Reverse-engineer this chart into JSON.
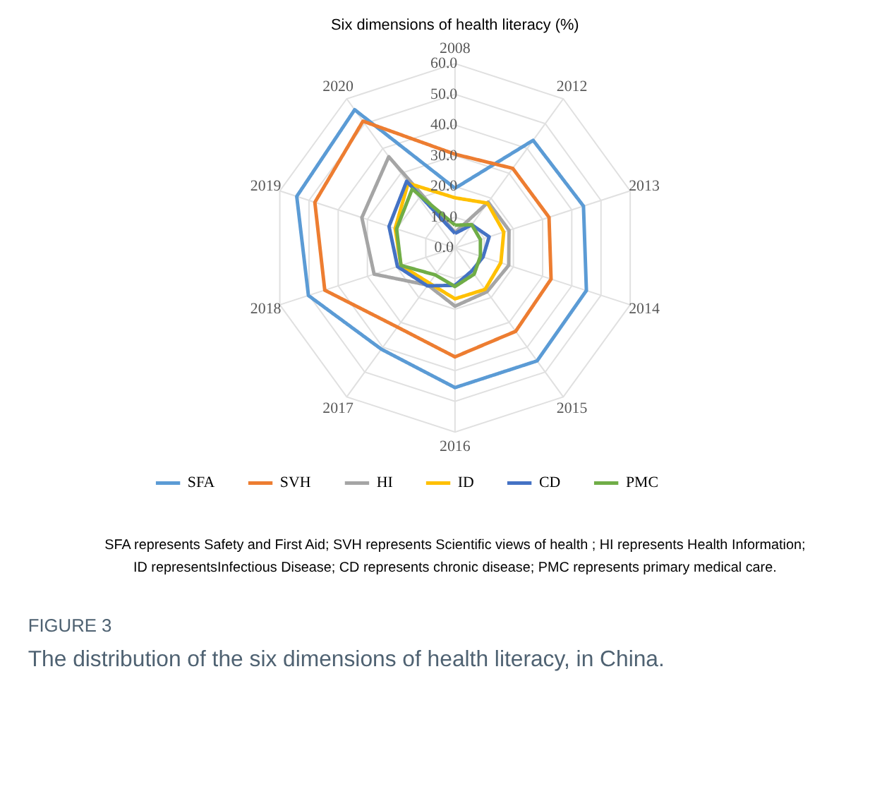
{
  "chart_data": {
    "type": "radar",
    "title": "Six dimensions of health literacy (%)",
    "categories": [
      "2008",
      "2012",
      "2013",
      "2014",
      "2015",
      "2016",
      "2017",
      "2018",
      "2019",
      "2020"
    ],
    "series": [
      {
        "name": "SFA",
        "color": "#5b9bd5",
        "values": [
          19.4,
          43.3,
          44.0,
          45.0,
          45.5,
          45.5,
          40.8,
          50.2,
          54.2,
          55.6
        ]
      },
      {
        "name": "SVH",
        "color": "#ed7d31",
        "values": [
          30.5,
          32.0,
          32.2,
          32.9,
          33.6,
          35.5,
          31.9,
          44.6,
          48.0,
          51.0
        ]
      },
      {
        "name": "HI",
        "color": "#a5a5a5",
        "values": [
          5.0,
          18.4,
          18.5,
          18.4,
          17.7,
          19.0,
          15.0,
          27.7,
          31.9,
          36.7
        ]
      },
      {
        "name": "ID",
        "color": "#ffc000",
        "values": [
          16.3,
          18.0,
          16.7,
          15.7,
          16.7,
          16.6,
          14.2,
          18.5,
          20.5,
          26.0
        ]
      },
      {
        "name": "CD",
        "color": "#4472c4",
        "values": [
          4.7,
          9.3,
          11.7,
          9.6,
          9.3,
          12.2,
          15.3,
          19.7,
          22.6,
          26.8
        ]
      },
      {
        "name": "PMC",
        "color": "#70ad47",
        "values": [
          7.4,
          9.3,
          8.7,
          8.7,
          10.6,
          12.6,
          10.9,
          18.5,
          20.0,
          23.7
        ]
      }
    ],
    "ylim": [
      0,
      60
    ],
    "yticks": [
      {
        "value": 0,
        "label": "0.0"
      },
      {
        "value": 10,
        "label": "10.0"
      },
      {
        "value": 20,
        "label": "20.0"
      },
      {
        "value": 30,
        "label": "30.0"
      },
      {
        "value": 40,
        "label": "40.0"
      },
      {
        "value": 50,
        "label": "50.0"
      },
      {
        "value": 60,
        "label": "60.0"
      }
    ],
    "grid": true,
    "legend": "bottom",
    "line_style": "solid",
    "marker": "none",
    "annotations": [
      "SFA represents Safety and First Aid; SVH represents Scientific views of health ; HI represents Health Information;",
      "ID representsInfectious Disease; CD represents chronic disease; PMC represents primary medical care.",
      "FIGURE 3",
      "The distribution of the six dimensions of health literacy, in China."
    ]
  }
}
